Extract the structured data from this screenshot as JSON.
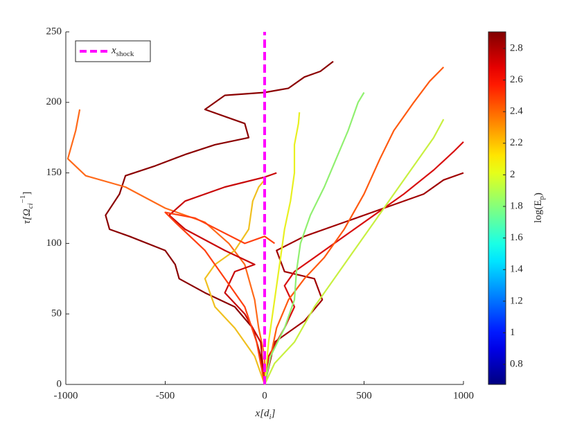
{
  "chart_data": {
    "type": "line",
    "xlabel": {
      "base": "x[d",
      "sub": "i",
      "end": "]"
    },
    "ylabel": {
      "base": "τ[Ω",
      "sub": "ci",
      "sup": "−1",
      "end": "]"
    },
    "xlim": [
      -1000,
      1000
    ],
    "xticks": [
      -1000,
      -500,
      0,
      500,
      1000
    ],
    "ylim": [
      0,
      250
    ],
    "yticks": [
      0,
      50,
      100,
      150,
      200,
      250
    ],
    "shock": {
      "name": {
        "base": "x",
        "sub": "shock"
      },
      "x": 0,
      "color": "#ff00ff"
    },
    "legend": "upper left",
    "colorbar": {
      "colormap": "jet",
      "clim": [
        0.673,
        2.905
      ],
      "ticks": [
        0.8,
        1,
        1.2,
        1.4,
        1.6,
        1.8,
        2,
        2.2,
        2.4,
        2.6,
        2.8
      ],
      "label": {
        "base": "log(E",
        "sub": "p",
        "end": ")"
      }
    },
    "series": [
      {
        "color": "#8b0000",
        "x": [
          0,
          -20,
          -60,
          -150,
          -300,
          -430,
          -450,
          -500,
          -680,
          -780,
          -800,
          -730,
          -700,
          -550,
          -400,
          -250,
          -80,
          -100,
          -200,
          -300,
          -200,
          0,
          120,
          200,
          280,
          345
        ],
        "y": [
          0,
          20,
          40,
          55,
          65,
          75,
          85,
          95,
          105,
          110,
          120,
          135,
          148,
          155,
          163,
          170,
          175,
          185,
          190,
          195,
          205,
          207,
          210,
          218,
          222,
          229
        ]
      },
      {
        "color": "#a00000",
        "x": [
          0,
          50,
          200,
          290,
          250,
          100,
          60,
          200,
          400,
          600,
          800,
          900,
          1000
        ],
        "y": [
          0,
          30,
          45,
          60,
          75,
          80,
          95,
          105,
          115,
          125,
          135,
          145,
          150
        ]
      },
      {
        "color": "#d81010",
        "x": [
          0,
          20,
          100,
          150,
          100,
          150,
          250,
          400,
          550,
          700,
          850,
          950,
          1000
        ],
        "y": [
          0,
          20,
          40,
          55,
          70,
          80,
          90,
          105,
          120,
          135,
          152,
          165,
          172
        ]
      },
      {
        "color": "#ff5a10",
        "x": [
          0,
          30,
          60,
          120,
          200,
          300,
          400,
          500,
          580,
          650,
          750,
          830,
          900
        ],
        "y": [
          0,
          20,
          40,
          60,
          75,
          90,
          110,
          135,
          160,
          180,
          200,
          215,
          225
        ]
      },
      {
        "color": "#ff6a1a",
        "x": [
          -930,
          -950,
          -990,
          -900,
          -700,
          -500,
          -300,
          -180,
          -100,
          -50,
          -30,
          0,
          0
        ],
        "y": [
          195,
          180,
          160,
          148,
          140,
          125,
          115,
          100,
          85,
          60,
          40,
          20,
          0
        ]
      },
      {
        "color": "#90f070",
        "x": [
          0,
          30,
          100,
          150,
          160,
          180,
          230,
          300,
          360,
          420,
          470,
          500
        ],
        "y": [
          0,
          20,
          40,
          60,
          80,
          100,
          120,
          140,
          160,
          180,
          200,
          207
        ]
      },
      {
        "color": "#c8f040",
        "x": [
          0,
          50,
          150,
          250,
          350,
          450,
          550,
          650,
          750,
          850,
          900
        ],
        "y": [
          0,
          15,
          30,
          55,
          75,
          95,
          115,
          135,
          155,
          175,
          188
        ]
      },
      {
        "color": "#e8f020",
        "x": [
          0,
          20,
          50,
          80,
          100,
          130,
          150,
          150,
          170,
          175
        ],
        "y": [
          0,
          30,
          60,
          90,
          110,
          130,
          150,
          170,
          185,
          193
        ]
      },
      {
        "color": "#f0c020",
        "x": [
          0,
          -50,
          -150,
          -250,
          -300,
          -250,
          -150,
          -80,
          -60,
          -30,
          0
        ],
        "y": [
          0,
          20,
          40,
          55,
          75,
          85,
          95,
          110,
          130,
          140,
          145
        ]
      },
      {
        "color": "#c80808",
        "x": [
          0,
          -20,
          -100,
          -200,
          -150,
          -50,
          -200,
          -400,
          -480,
          -400,
          -200,
          0,
          60
        ],
        "y": [
          0,
          30,
          50,
          65,
          80,
          85,
          95,
          110,
          120,
          130,
          140,
          147,
          150
        ]
      },
      {
        "color": "#ff4010",
        "x": [
          0,
          -40,
          -100,
          -200,
          -300,
          -450,
          -500,
          -350,
          -100,
          0,
          50
        ],
        "y": [
          0,
          30,
          55,
          75,
          95,
          115,
          122,
          118,
          100,
          105,
          100
        ]
      }
    ]
  }
}
